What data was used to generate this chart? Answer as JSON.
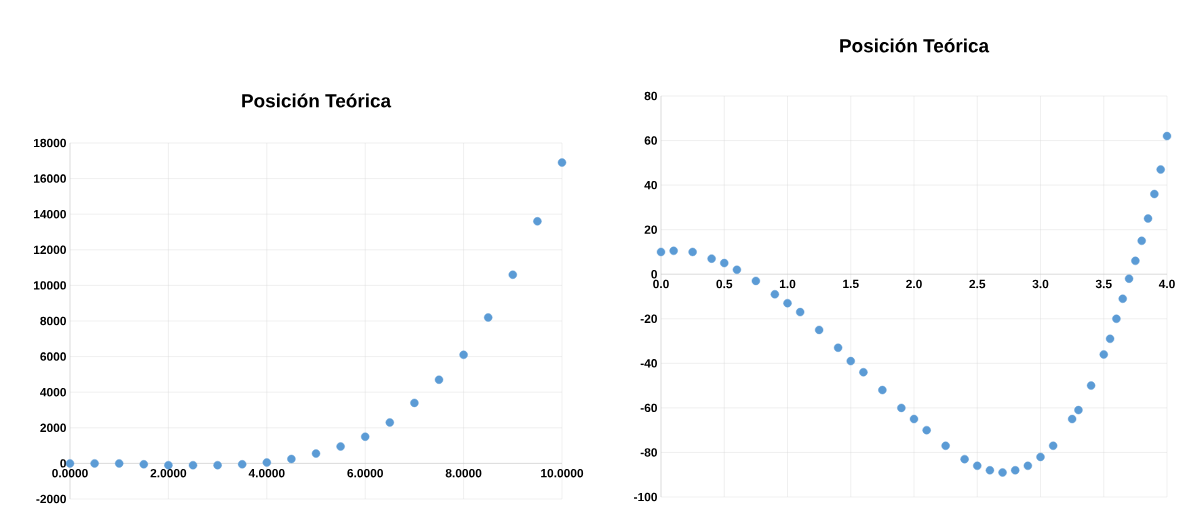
{
  "chart_data": [
    {
      "type": "scatter",
      "title": "Posición Teórica",
      "marker": "circle",
      "grid": true,
      "color": "#5b9bd5",
      "x": [
        0,
        0.5,
        1,
        1.5,
        2,
        2.5,
        3,
        3.5,
        4,
        4.5,
        5,
        5.5,
        6,
        6.5,
        7,
        7.5,
        8,
        8.5,
        9,
        9.5,
        10
      ],
      "values": [
        0,
        0,
        0,
        -50,
        -100,
        -100,
        -100,
        -50,
        50,
        250,
        550,
        950,
        1500,
        2300,
        3400,
        4700,
        6100,
        8200,
        10600,
        13600,
        16900
      ],
      "xlim": [
        0,
        10
      ],
      "ylim": [
        -2000,
        18000
      ],
      "xticks": [
        {
          "value": 0,
          "label": "0.0000"
        },
        {
          "value": 2,
          "label": "2.0000"
        },
        {
          "value": 4,
          "label": "4.0000"
        },
        {
          "value": 6,
          "label": "6.0000"
        },
        {
          "value": 8,
          "label": "8.0000"
        },
        {
          "value": 10,
          "label": "10.0000"
        }
      ],
      "yticks": [
        -2000,
        0,
        2000,
        4000,
        6000,
        8000,
        10000,
        12000,
        14000,
        16000,
        18000
      ]
    },
    {
      "type": "scatter",
      "title": "Posición Teórica",
      "marker": "circle",
      "grid": true,
      "color": "#5b9bd5",
      "x": [
        0,
        0.1,
        0.25,
        0.4,
        0.5,
        0.6,
        0.75,
        0.9,
        1.0,
        1.1,
        1.25,
        1.4,
        1.5,
        1.6,
        1.75,
        1.9,
        2.0,
        2.1,
        2.25,
        2.4,
        2.5,
        2.6,
        2.7,
        2.8,
        2.9,
        3.0,
        3.1,
        3.25,
        3.3,
        3.4,
        3.5,
        3.55,
        3.6,
        3.65,
        3.7,
        3.75,
        3.8,
        3.85,
        3.9,
        3.95,
        4.0
      ],
      "values": [
        10,
        10.5,
        10,
        7,
        5,
        2,
        -3,
        -9,
        -13,
        -17,
        -25,
        -33,
        -39,
        -44,
        -52,
        -60,
        -65,
        -70,
        -77,
        -83,
        -86,
        -88,
        -89,
        -88,
        -86,
        -82,
        -77,
        -65,
        -61,
        -50,
        -36,
        -29,
        -20,
        -11,
        -2,
        6,
        15,
        25,
        36,
        47,
        62
      ],
      "xlim": [
        0,
        4
      ],
      "ylim": [
        -100,
        80
      ],
      "xticks": [
        {
          "value": 0,
          "label": "0.0"
        },
        {
          "value": 0.5,
          "label": "0.5"
        },
        {
          "value": 1,
          "label": "1.0"
        },
        {
          "value": 1.5,
          "label": "1.5"
        },
        {
          "value": 2,
          "label": "2.0"
        },
        {
          "value": 2.5,
          "label": "2.5"
        },
        {
          "value": 3,
          "label": "3.0"
        },
        {
          "value": 3.5,
          "label": "3.5"
        },
        {
          "value": 4,
          "label": "4.0"
        }
      ],
      "yticks": [
        -100,
        -80,
        -60,
        -40,
        -20,
        0,
        20,
        40,
        60,
        80
      ]
    }
  ]
}
